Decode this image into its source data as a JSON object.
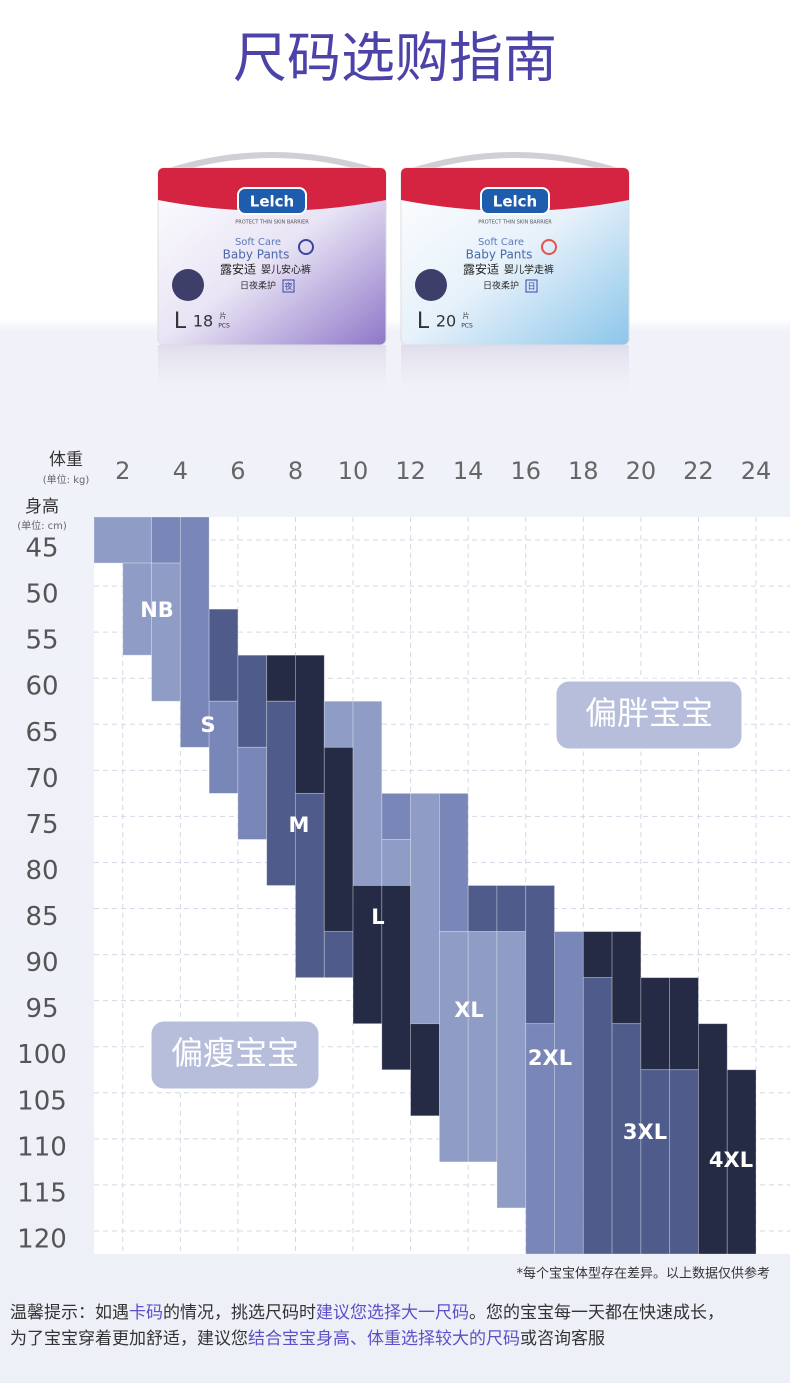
{
  "header": {
    "title": "尺码选购指南"
  },
  "products": [
    {
      "brand": "Lelch",
      "tagline": "PROTECT THIN SKIN BARRIER",
      "line1": "Soft Care",
      "line2": "Baby Pants",
      "name_cn": "露安适",
      "product": "婴儿安心裤",
      "feature": "日夜柔护",
      "badge": "夜",
      "size": "L",
      "count": "18",
      "unit": "片",
      "pcs": "PCS"
    },
    {
      "brand": "Lelch",
      "tagline": "PROTECT THIN SKIN BARRIER",
      "line1": "Soft Care",
      "line2": "Baby Pants",
      "name_cn": "露安适",
      "product": "婴儿学走裤",
      "feature": "日夜柔护",
      "badge": "日",
      "size": "L",
      "count": "20",
      "unit": "片",
      "pcs": "PCS"
    }
  ],
  "chart_data": {
    "type": "size-grid",
    "x_label": "体重",
    "x_unit": "(单位: kg)",
    "y_label": "身高",
    "y_unit": "(单位: cm)",
    "xlim": [
      1,
      24
    ],
    "xticks": [
      2,
      4,
      6,
      8,
      10,
      12,
      14,
      16,
      18,
      20,
      22,
      24
    ],
    "ylim": [
      42.5,
      122.5
    ],
    "yticks": [
      45,
      50,
      55,
      60,
      65,
      70,
      75,
      80,
      85,
      90,
      95,
      100,
      105,
      110,
      115,
      120
    ],
    "grid": true,
    "sizes": [
      "NB",
      "S",
      "M",
      "L",
      "XL",
      "2XL",
      "3XL",
      "4XL"
    ],
    "blocks": [
      {
        "weight": [
          1,
          3
        ],
        "height": [
          42.5,
          47.5
        ],
        "color": "#8f9cc5"
      },
      {
        "weight": [
          2,
          3
        ],
        "height": [
          47.5,
          57.5
        ],
        "color": "#8f9cc5"
      },
      {
        "weight": [
          3,
          4
        ],
        "height": [
          42.5,
          47.5
        ],
        "color": "#7986b8"
      },
      {
        "weight": [
          3,
          4
        ],
        "height": [
          47.5,
          62.5
        ],
        "color": "#8f9cc5"
      },
      {
        "weight": [
          4,
          5
        ],
        "height": [
          42.5,
          67.5
        ],
        "color": "#7986b8"
      },
      {
        "weight": [
          5,
          6
        ],
        "height": [
          52.5,
          62.5
        ],
        "color": "#4f5c8b"
      },
      {
        "weight": [
          5,
          6
        ],
        "height": [
          62.5,
          72.5
        ],
        "color": "#7986b8"
      },
      {
        "weight": [
          6,
          7
        ],
        "height": [
          57.5,
          67.5
        ],
        "color": "#4f5c8b"
      },
      {
        "weight": [
          6,
          7
        ],
        "height": [
          67.5,
          77.5
        ],
        "color": "#7986b8"
      },
      {
        "weight": [
          7,
          8
        ],
        "height": [
          57.5,
          62.5
        ],
        "color": "#262b45"
      },
      {
        "weight": [
          7,
          8
        ],
        "height": [
          62.5,
          82.5
        ],
        "color": "#4f5c8b"
      },
      {
        "weight": [
          8,
          9
        ],
        "height": [
          57.5,
          72.5
        ],
        "color": "#262b45"
      },
      {
        "weight": [
          8,
          9
        ],
        "height": [
          72.5,
          92.5
        ],
        "color": "#4f5c8b"
      },
      {
        "weight": [
          9,
          10
        ],
        "height": [
          62.5,
          67.5
        ],
        "color": "#8f9cc5"
      },
      {
        "weight": [
          9,
          10
        ],
        "height": [
          67.5,
          87.5
        ],
        "color": "#262b45"
      },
      {
        "weight": [
          9,
          10
        ],
        "height": [
          87.5,
          92.5
        ],
        "color": "#4f5c8b"
      },
      {
        "weight": [
          10,
          11
        ],
        "height": [
          62.5,
          82.5
        ],
        "color": "#8f9cc5"
      },
      {
        "weight": [
          10,
          11
        ],
        "height": [
          82.5,
          97.5
        ],
        "color": "#262b45"
      },
      {
        "weight": [
          11,
          12
        ],
        "height": [
          72.5,
          77.5
        ],
        "color": "#7986b8"
      },
      {
        "weight": [
          11,
          12
        ],
        "height": [
          77.5,
          82.5
        ],
        "color": "#8f9cc5"
      },
      {
        "weight": [
          11,
          12
        ],
        "height": [
          82.5,
          102.5
        ],
        "color": "#262b45"
      },
      {
        "weight": [
          12,
          13
        ],
        "height": [
          72.5,
          97.5
        ],
        "color": "#8f9cc5"
      },
      {
        "weight": [
          12,
          13
        ],
        "height": [
          97.5,
          107.5
        ],
        "color": "#262b45"
      },
      {
        "weight": [
          13,
          14
        ],
        "height": [
          72.5,
          87.5
        ],
        "color": "#7986b8"
      },
      {
        "weight": [
          13,
          14
        ],
        "height": [
          87.5,
          112.5
        ],
        "color": "#8f9cc5"
      },
      {
        "weight": [
          14,
          15
        ],
        "height": [
          82.5,
          87.5
        ],
        "color": "#4f5c8b"
      },
      {
        "weight": [
          14,
          15
        ],
        "height": [
          87.5,
          112.5
        ],
        "color": "#8f9cc5"
      },
      {
        "weight": [
          15,
          16
        ],
        "height": [
          82.5,
          87.5
        ],
        "color": "#4f5c8b"
      },
      {
        "weight": [
          15,
          16
        ],
        "height": [
          87.5,
          117.5
        ],
        "color": "#8f9cc5"
      },
      {
        "weight": [
          16,
          17
        ],
        "height": [
          82.5,
          97.5
        ],
        "color": "#4f5c8b"
      },
      {
        "weight": [
          16,
          17
        ],
        "height": [
          97.5,
          122.5
        ],
        "color": "#7986b8"
      },
      {
        "weight": [
          17,
          18
        ],
        "height": [
          87.5,
          122.5
        ],
        "color": "#7986b8"
      },
      {
        "weight": [
          18,
          19
        ],
        "height": [
          87.5,
          92.5
        ],
        "color": "#262b45"
      },
      {
        "weight": [
          18,
          19
        ],
        "height": [
          92.5,
          122.5
        ],
        "color": "#4f5c8b"
      },
      {
        "weight": [
          19,
          20
        ],
        "height": [
          87.5,
          97.5
        ],
        "color": "#262b45"
      },
      {
        "weight": [
          19,
          20
        ],
        "height": [
          97.5,
          122.5
        ],
        "color": "#4f5c8b"
      },
      {
        "weight": [
          20,
          21
        ],
        "height": [
          92.5,
          102.5
        ],
        "color": "#262b45"
      },
      {
        "weight": [
          20,
          21
        ],
        "height": [
          102.5,
          122.5
        ],
        "color": "#4f5c8b"
      },
      {
        "weight": [
          21,
          22
        ],
        "height": [
          92.5,
          102.5
        ],
        "color": "#262b45"
      },
      {
        "weight": [
          21,
          22
        ],
        "height": [
          102.5,
          122.5
        ],
        "color": "#4f5c8b"
      },
      {
        "weight": [
          22,
          23
        ],
        "height": [
          97.5,
          122.5
        ],
        "color": "#262b45"
      },
      {
        "weight": [
          23,
          24
        ],
        "height": [
          102.5,
          122.5
        ],
        "color": "#262b45"
      }
    ],
    "annotations": [
      "偏胖宝宝",
      "偏瘦宝宝"
    ],
    "footnote": "*每个宝宝体型存在差异。以上数据仅供参考"
  },
  "tip": [
    [
      {
        "text": "温馨提示：如遇",
        "highlight": false
      },
      {
        "text": "卡码",
        "highlight": true
      },
      {
        "text": "的情况，挑选尺码时",
        "highlight": false
      },
      {
        "text": "建议您选择大一尺码",
        "highlight": true
      },
      {
        "text": "。您的宝宝每一天都在快速成长，",
        "highlight": false
      }
    ],
    [
      {
        "text": "为了宝宝穿着更加舒适，建议您",
        "highlight": false
      },
      {
        "text": "结合宝宝身高、体重选择较大的尺码",
        "highlight": true
      },
      {
        "text": "或咨询客服",
        "highlight": false
      }
    ]
  ]
}
